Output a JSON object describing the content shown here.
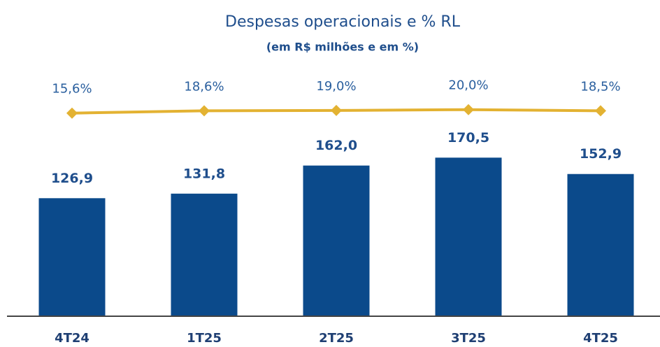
{
  "chart_data": {
    "type": "bar_line",
    "title": "Despesas operacionais e % RL",
    "subtitle": "(em R$ milhões e em %)",
    "categories": [
      "4T24",
      "1T25",
      "2T25",
      "3T25",
      "4T25"
    ],
    "series": [
      {
        "name": "Despesas operacionais",
        "type": "bar",
        "color": "#0b4a8b",
        "values": [
          126.9,
          131.8,
          162.0,
          170.5,
          152.9
        ],
        "value_labels": [
          "126,9",
          "131,8",
          "162,0",
          "170,5",
          "152,9"
        ]
      },
      {
        "name": "% RL",
        "type": "line",
        "axis": "y2",
        "color": "#e3b232",
        "values": [
          15.6,
          18.6,
          19.0,
          20.0,
          18.5
        ],
        "value_labels": [
          "15,6%",
          "18,6%",
          "19,0%",
          "20,0%",
          "18,5%"
        ]
      }
    ],
    "ylim": [
      0,
      340
    ],
    "y2lim": [
      -240,
      158
    ]
  }
}
